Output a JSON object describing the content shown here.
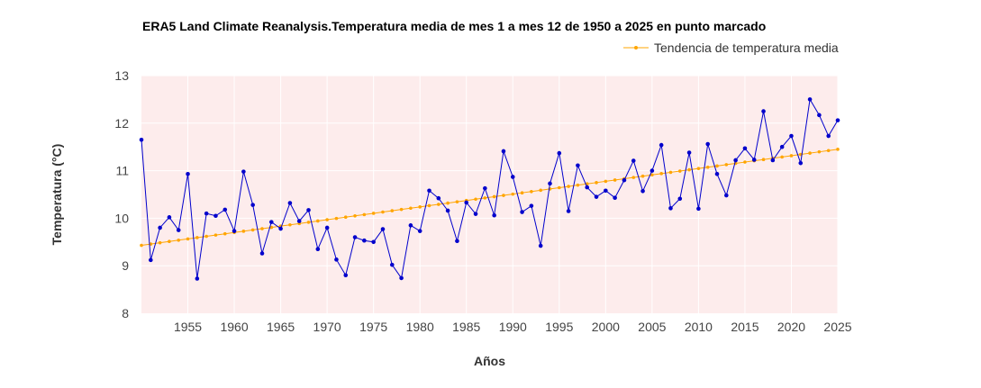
{
  "chart_data": {
    "type": "line",
    "title": "ERA5 Land Climate Reanalysis.Temperatura media de mes 1 a mes 12 de 1950 a 2025 en punto marcado",
    "xlabel": "Años",
    "ylabel": "Temperatura (°C)",
    "xlim": [
      1950,
      2025
    ],
    "ylim": [
      8,
      13
    ],
    "xticks": [
      1955,
      1960,
      1965,
      1970,
      1975,
      1980,
      1985,
      1990,
      1995,
      2000,
      2005,
      2010,
      2015,
      2020,
      2025
    ],
    "yticks": [
      8,
      9,
      10,
      11,
      12,
      13
    ],
    "grid": true,
    "legend": {
      "position": "top-right",
      "entries": [
        "Tendencia de temperatura media"
      ]
    },
    "x": [
      1950,
      1951,
      1952,
      1953,
      1954,
      1955,
      1956,
      1957,
      1958,
      1959,
      1960,
      1961,
      1962,
      1963,
      1964,
      1965,
      1966,
      1967,
      1968,
      1969,
      1970,
      1971,
      1972,
      1973,
      1974,
      1975,
      1976,
      1977,
      1978,
      1979,
      1980,
      1981,
      1982,
      1983,
      1984,
      1985,
      1986,
      1987,
      1988,
      1989,
      1990,
      1991,
      1992,
      1993,
      1994,
      1995,
      1996,
      1997,
      1998,
      1999,
      2000,
      2001,
      2002,
      2003,
      2004,
      2005,
      2006,
      2007,
      2008,
      2009,
      2010,
      2011,
      2012,
      2013,
      2014,
      2015,
      2016,
      2017,
      2018,
      2019,
      2020,
      2021,
      2022,
      2023,
      2024,
      2025
    ],
    "series": [
      {
        "name": "Temperatura media",
        "color": "#0000cc",
        "values": [
          11.65,
          9.12,
          9.8,
          10.02,
          9.75,
          10.93,
          8.73,
          10.1,
          10.05,
          10.18,
          9.73,
          10.98,
          10.28,
          9.26,
          9.92,
          9.78,
          10.32,
          9.94,
          10.17,
          9.35,
          9.8,
          9.13,
          8.8,
          9.6,
          9.53,
          9.5,
          9.77,
          9.02,
          8.74,
          9.85,
          9.73,
          10.58,
          10.42,
          10.16,
          9.52,
          10.33,
          10.09,
          10.63,
          10.06,
          11.41,
          10.87,
          10.13,
          10.26,
          9.42,
          10.73,
          11.37,
          10.15,
          11.11,
          10.65,
          10.45,
          10.58,
          10.43,
          10.8,
          11.21,
          10.57,
          11.0,
          11.54,
          10.21,
          10.41,
          11.38,
          10.2,
          11.56,
          10.93,
          10.48,
          11.22,
          11.47,
          11.23,
          12.25,
          11.22,
          11.5,
          11.73,
          11.16,
          12.5,
          12.17,
          11.73,
          12.06
        ]
      },
      {
        "name": "Tendencia de temperatura media",
        "color": "#ffa500",
        "trend_start": 9.43,
        "trend_end": 11.45
      }
    ]
  }
}
